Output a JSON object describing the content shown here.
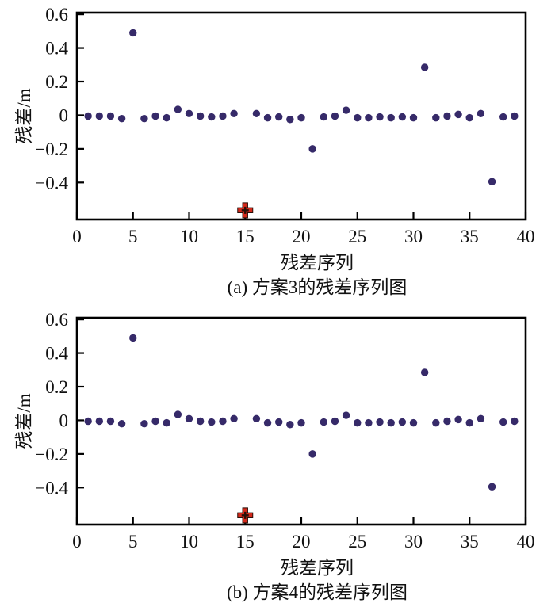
{
  "figure": {
    "background_color": "#ffffff",
    "axis_color": "#000000",
    "text_color": "#111111"
  },
  "chart_data": [
    {
      "type": "scatter",
      "panel_label": "(a) 方案3的残差序列图",
      "xlabel": "残差序列",
      "ylabel": "残差/m",
      "xlim": [
        0,
        40
      ],
      "ylim": [
        -0.62,
        0.61
      ],
      "xticks": [
        0,
        5,
        10,
        15,
        20,
        25,
        30,
        35,
        40
      ],
      "yticks": [
        0.6,
        0.4,
        0.2,
        0,
        -0.2,
        -0.4
      ],
      "grid": false,
      "legend_position": "none",
      "series": [
        {
          "marker": "circle",
          "color": "#362a69",
          "points": [
            [
              1,
              -0.005
            ],
            [
              2,
              -0.005
            ],
            [
              3,
              -0.005
            ],
            [
              4,
              -0.02
            ],
            [
              5,
              0.49
            ],
            [
              6,
              -0.02
            ],
            [
              7,
              -0.005
            ],
            [
              8,
              -0.015
            ],
            [
              9,
              0.035
            ],
            [
              10,
              0.01
            ],
            [
              11,
              -0.005
            ],
            [
              12,
              -0.01
            ],
            [
              13,
              -0.005
            ],
            [
              14,
              0.01
            ],
            [
              16,
              0.01
            ],
            [
              17,
              -0.015
            ],
            [
              18,
              -0.01
            ],
            [
              19,
              -0.025
            ],
            [
              20,
              -0.015
            ],
            [
              21,
              -0.2
            ],
            [
              22,
              -0.01
            ],
            [
              23,
              -0.005
            ],
            [
              24,
              0.03
            ],
            [
              25,
              -0.015
            ],
            [
              26,
              -0.015
            ],
            [
              27,
              -0.01
            ],
            [
              28,
              -0.015
            ],
            [
              29,
              -0.01
            ],
            [
              30,
              -0.015
            ],
            [
              31,
              0.285
            ],
            [
              32,
              -0.015
            ],
            [
              33,
              -0.005
            ],
            [
              34,
              0.005
            ],
            [
              35,
              -0.015
            ],
            [
              36,
              0.01
            ],
            [
              37,
              -0.395
            ],
            [
              38,
              -0.01
            ],
            [
              39,
              -0.005
            ]
          ]
        },
        {
          "marker": "plus",
          "color": "#d3291b",
          "points": [
            [
              15,
              -0.565
            ]
          ]
        }
      ]
    },
    {
      "type": "scatter",
      "panel_label": "(b) 方案4的残差序列图",
      "xlabel": "残差序列",
      "ylabel": "残差/m",
      "xlim": [
        0,
        40
      ],
      "ylim": [
        -0.62,
        0.61
      ],
      "xticks": [
        0,
        5,
        10,
        15,
        20,
        25,
        30,
        35,
        40
      ],
      "yticks": [
        0.6,
        0.4,
        0.2,
        0,
        -0.2,
        -0.4
      ],
      "grid": false,
      "legend_position": "none",
      "series": [
        {
          "marker": "circle",
          "color": "#362a69",
          "points": [
            [
              1,
              -0.005
            ],
            [
              2,
              -0.005
            ],
            [
              3,
              -0.005
            ],
            [
              4,
              -0.02
            ],
            [
              5,
              0.49
            ],
            [
              6,
              -0.02
            ],
            [
              7,
              -0.005
            ],
            [
              8,
              -0.015
            ],
            [
              9,
              0.035
            ],
            [
              10,
              0.01
            ],
            [
              11,
              -0.005
            ],
            [
              12,
              -0.01
            ],
            [
              13,
              -0.005
            ],
            [
              14,
              0.01
            ],
            [
              16,
              0.01
            ],
            [
              17,
              -0.015
            ],
            [
              18,
              -0.01
            ],
            [
              19,
              -0.025
            ],
            [
              20,
              -0.015
            ],
            [
              21,
              -0.2
            ],
            [
              22,
              -0.01
            ],
            [
              23,
              -0.005
            ],
            [
              24,
              0.03
            ],
            [
              25,
              -0.015
            ],
            [
              26,
              -0.015
            ],
            [
              27,
              -0.01
            ],
            [
              28,
              -0.015
            ],
            [
              29,
              -0.01
            ],
            [
              30,
              -0.015
            ],
            [
              31,
              0.285
            ],
            [
              32,
              -0.015
            ],
            [
              33,
              -0.005
            ],
            [
              34,
              0.005
            ],
            [
              35,
              -0.015
            ],
            [
              36,
              0.01
            ],
            [
              37,
              -0.395
            ],
            [
              38,
              -0.01
            ],
            [
              39,
              -0.005
            ]
          ]
        },
        {
          "marker": "plus",
          "color": "#d3291b",
          "points": [
            [
              15,
              -0.565
            ]
          ]
        }
      ]
    }
  ]
}
